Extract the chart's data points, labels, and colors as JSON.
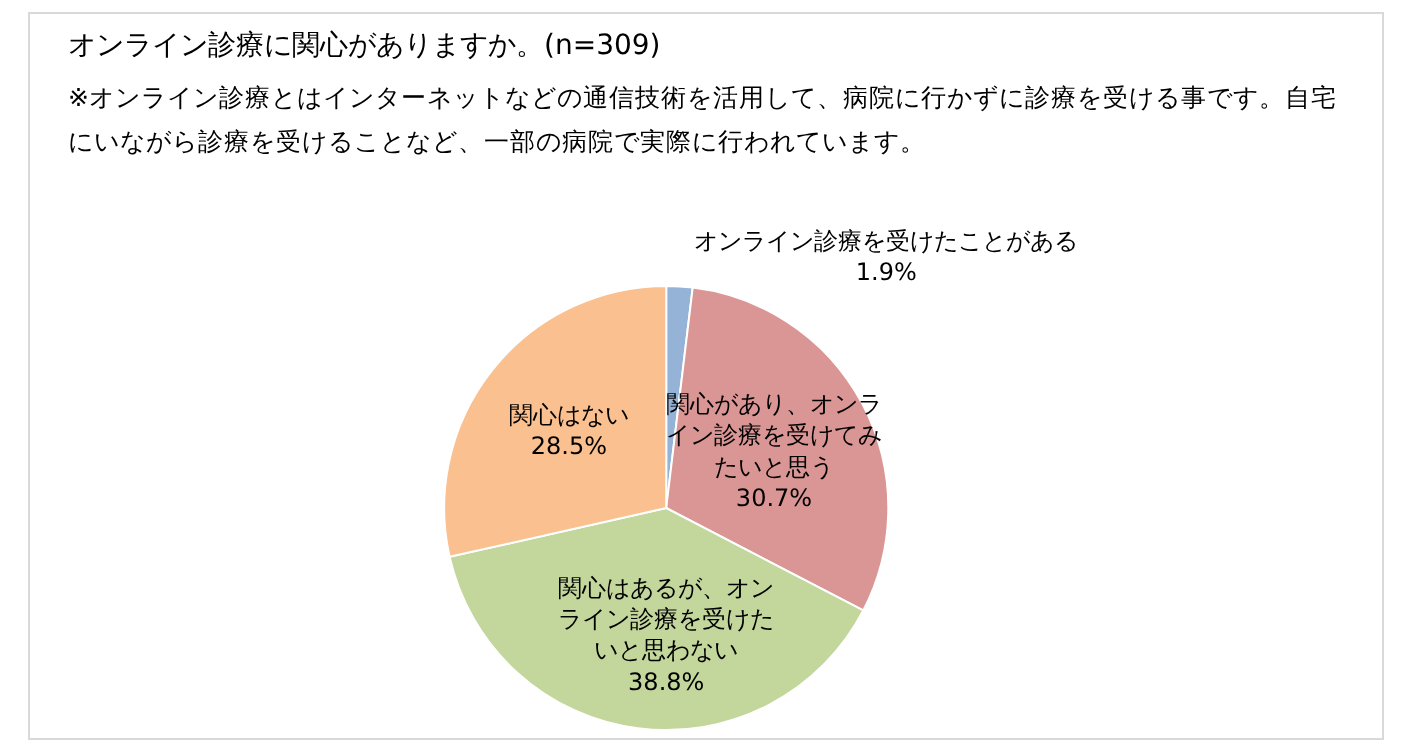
{
  "chart_data": {
    "type": "pie",
    "title": "オンライン診療に関心がありますか。(n=309)",
    "subtitle": "※オンライン診療とはインターネットなどの通信技術を活用して、病院に行かずに診療を受ける事です。自宅にいながら診療を受けることなど、一部の病院で実際に行われています。",
    "categories": [
      "オンライン診療を受けたことがある",
      "関心があり、オンライン診療を受けてみたいと思う",
      "関心はあるが、オンライン診療を受けたいと思わない",
      "関心はない"
    ],
    "values": [
      1.9,
      30.7,
      38.8,
      28.5
    ],
    "colors": [
      "#95b3d7",
      "#d99694",
      "#c3d69b",
      "#fac090"
    ],
    "value_labels": [
      "1.9%",
      "30.7%",
      "38.8%",
      "28.5%"
    ]
  }
}
